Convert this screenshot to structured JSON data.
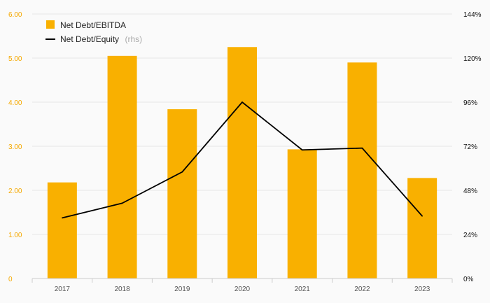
{
  "colors": {
    "bar": "#f9b000",
    "line": "#000000",
    "grid": "#e6e6e6",
    "left_axis_text": "#f5a800",
    "right_axis_text": "#111111",
    "x_axis_text": "#555555",
    "background": "#fafafa"
  },
  "legend": {
    "bar_label": "Net Debt/EBITDA",
    "line_label": "Net Debt/Equity",
    "line_note": "(rhs)"
  },
  "chart_data": {
    "type": "bar",
    "categories": [
      "2017",
      "2018",
      "2019",
      "2020",
      "2021",
      "2022",
      "2023"
    ],
    "series": [
      {
        "name": "Net Debt/EBITDA",
        "type": "bar",
        "axis": "left",
        "values": [
          2.18,
          5.05,
          3.84,
          5.25,
          2.93,
          4.9,
          2.28
        ]
      },
      {
        "name": "Net Debt/Equity",
        "type": "line",
        "axis": "right",
        "values": [
          33,
          41,
          58,
          96,
          70,
          71,
          34
        ]
      }
    ],
    "y_left": {
      "ylim": [
        0,
        6
      ],
      "ticks": [
        0,
        1,
        2,
        3,
        4,
        5,
        6
      ],
      "tick_labels": [
        "0",
        "1.00",
        "2.00",
        "3.00",
        "4.00",
        "5.00",
        "6.00"
      ]
    },
    "y_right": {
      "ylim": [
        0,
        144
      ],
      "ticks": [
        0,
        24,
        48,
        72,
        96,
        120,
        144
      ],
      "tick_labels": [
        "0%",
        "24%",
        "48%",
        "72%",
        "96%",
        "120%",
        "144%"
      ]
    },
    "grid": true,
    "legend_position": "top-left"
  }
}
